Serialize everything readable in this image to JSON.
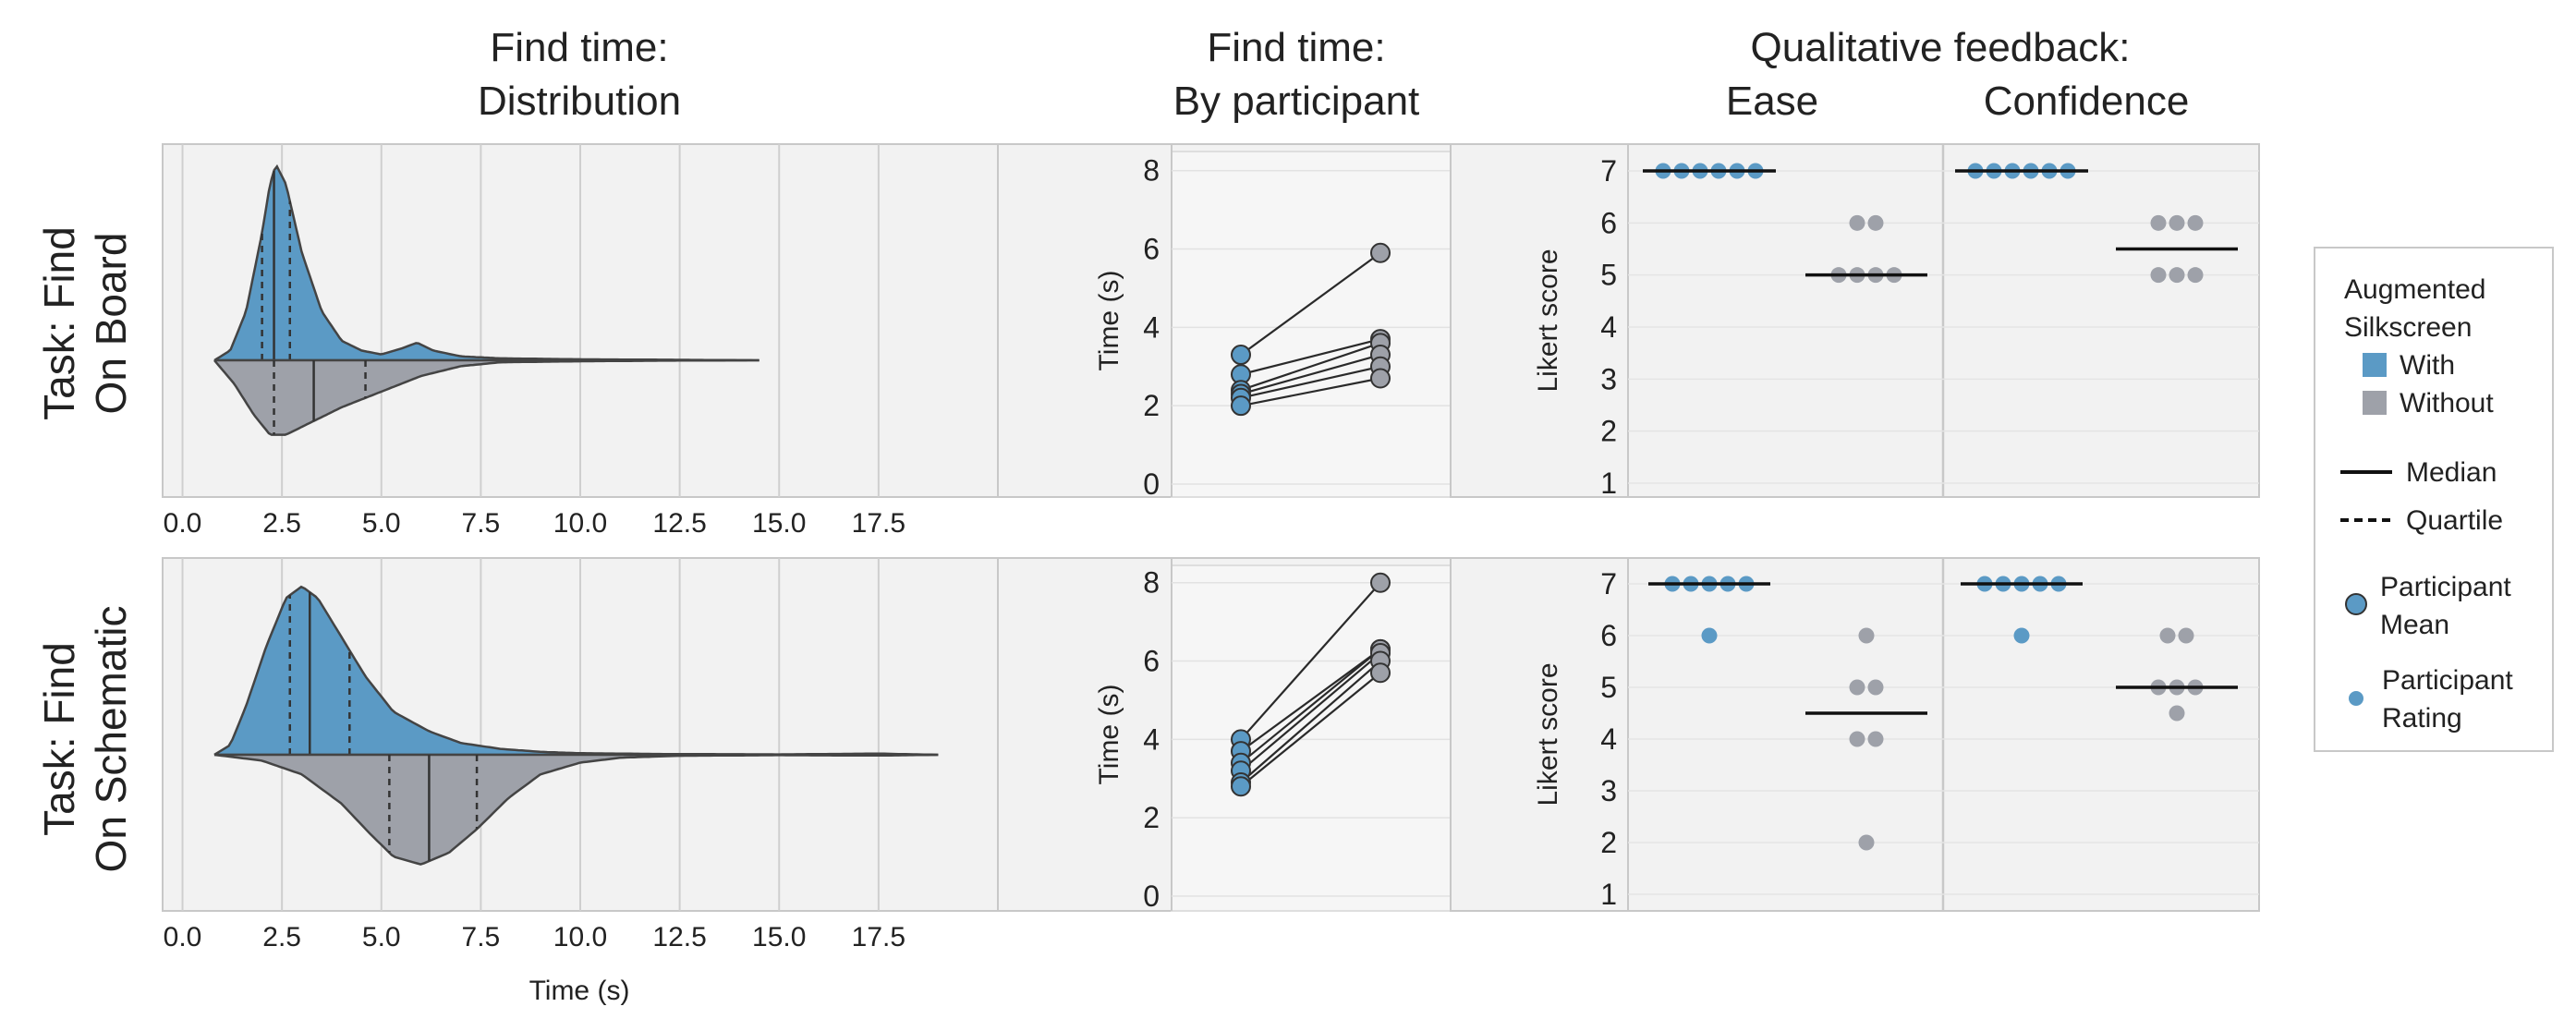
{
  "headers": {
    "dist_line1": "Find time:",
    "dist_line2": "Distribution",
    "part_line1": "Find time:",
    "part_line2": "By participant",
    "qual_line1": "Qualitative feedback:",
    "ease": "Ease",
    "confidence": "Confidence"
  },
  "rows": [
    {
      "line1": "Task: Find",
      "line2": "On Board"
    },
    {
      "line1": "Task: Find",
      "line2": "On Schematic"
    }
  ],
  "axis_labels": {
    "dist_x": "Time (s)",
    "part_y": "Time (s)",
    "likert_y": "Likert score"
  },
  "legend": {
    "title_line1": "Augmented",
    "title_line2": "Silkscreen",
    "with": "With",
    "without": "Without",
    "median": "Median",
    "quartile": "Quartile",
    "mean_line1": "Participant",
    "mean_line2": "Mean",
    "rating_line1": "Participant",
    "rating_line2": "Rating"
  },
  "colors": {
    "with": "#5b9ac5",
    "without": "#9ea1a9",
    "panel_bg": "#f2f2f2",
    "panel_border": "#c8c8c8",
    "grid": "#cfcfcf",
    "line": "#333333"
  },
  "chart_data": [
    {
      "type": "violin",
      "panel": "Distribution (On Board)",
      "x_ticks": [
        "0.0",
        "2.5",
        "5.0",
        "7.5",
        "10.0",
        "12.5",
        "15.0",
        "17.5"
      ],
      "xlim": [
        -0.5,
        20.5
      ],
      "xlabel": "",
      "series": [
        {
          "name": "With",
          "side": "top",
          "median": 2.3,
          "quartiles": [
            2.0,
            2.7
          ],
          "density": [
            [
              0.8,
              0
            ],
            [
              1.2,
              0.05
            ],
            [
              1.6,
              0.25
            ],
            [
              2.0,
              0.65
            ],
            [
              2.2,
              0.9
            ],
            [
              2.35,
              1.0
            ],
            [
              2.6,
              0.9
            ],
            [
              3.0,
              0.55
            ],
            [
              3.5,
              0.25
            ],
            [
              4.0,
              0.1
            ],
            [
              4.5,
              0.05
            ],
            [
              5.0,
              0.03
            ],
            [
              5.5,
              0.06
            ],
            [
              5.9,
              0.09
            ],
            [
              6.3,
              0.05
            ],
            [
              7.0,
              0.02
            ],
            [
              8.0,
              0.01
            ],
            [
              10.0,
              0.005
            ],
            [
              12.0,
              0.003
            ],
            [
              14.5,
              0
            ]
          ]
        },
        {
          "name": "Without",
          "side": "bottom",
          "median": 3.3,
          "quartiles": [
            2.3,
            4.6
          ],
          "density": [
            [
              0.8,
              0
            ],
            [
              1.3,
              0.12
            ],
            [
              1.8,
              0.28
            ],
            [
              2.2,
              0.38
            ],
            [
              2.6,
              0.38
            ],
            [
              3.2,
              0.32
            ],
            [
              4.0,
              0.24
            ],
            [
              5.0,
              0.16
            ],
            [
              6.0,
              0.08
            ],
            [
              7.0,
              0.03
            ],
            [
              8.0,
              0.01
            ],
            [
              10.0,
              0.005
            ],
            [
              12.0,
              0.002
            ],
            [
              14.5,
              0
            ]
          ]
        }
      ]
    },
    {
      "type": "violin",
      "panel": "Distribution (On Schematic)",
      "x_ticks": [
        "0.0",
        "2.5",
        "5.0",
        "7.5",
        "10.0",
        "12.5",
        "15.0",
        "17.5"
      ],
      "xlim": [
        -0.5,
        20.5
      ],
      "xlabel": "Time (s)",
      "series": [
        {
          "name": "With",
          "side": "top",
          "median": 3.2,
          "quartiles": [
            2.7,
            4.2
          ],
          "density": [
            [
              0.8,
              0
            ],
            [
              1.2,
              0.05
            ],
            [
              1.6,
              0.25
            ],
            [
              2.1,
              0.55
            ],
            [
              2.6,
              0.8
            ],
            [
              3.0,
              0.86
            ],
            [
              3.4,
              0.8
            ],
            [
              4.0,
              0.6
            ],
            [
              4.6,
              0.4
            ],
            [
              5.3,
              0.22
            ],
            [
              6.2,
              0.12
            ],
            [
              7.0,
              0.06
            ],
            [
              8.0,
              0.03
            ],
            [
              9.0,
              0.015
            ],
            [
              10.0,
              0.008
            ],
            [
              12.0,
              0.004
            ],
            [
              15.0,
              0.002
            ],
            [
              17.5,
              0.006
            ],
            [
              19.0,
              0
            ]
          ]
        },
        {
          "name": "Without",
          "side": "bottom",
          "median": 6.2,
          "quartiles": [
            5.2,
            7.4
          ],
          "density": [
            [
              0.8,
              0
            ],
            [
              2.0,
              0.03
            ],
            [
              3.0,
              0.1
            ],
            [
              4.0,
              0.25
            ],
            [
              4.7,
              0.4
            ],
            [
              5.3,
              0.52
            ],
            [
              6.0,
              0.56
            ],
            [
              6.7,
              0.5
            ],
            [
              7.4,
              0.38
            ],
            [
              8.2,
              0.22
            ],
            [
              9.0,
              0.1
            ],
            [
              10.0,
              0.04
            ],
            [
              11.0,
              0.015
            ],
            [
              12.5,
              0.005
            ],
            [
              15.0,
              0.002
            ],
            [
              17.5,
              0.004
            ],
            [
              19.0,
              0
            ]
          ]
        }
      ]
    },
    {
      "type": "scatter",
      "panel": "By participant (On Board)",
      "ylabel": "Time (s)",
      "y_ticks": [
        "0",
        "2",
        "4",
        "6",
        "8"
      ],
      "ylim": [
        0,
        8.3
      ],
      "pairs": [
        [
          3.3,
          5.9
        ],
        [
          2.8,
          3.7
        ],
        [
          2.4,
          3.6
        ],
        [
          2.3,
          3.3
        ],
        [
          2.2,
          3.0
        ],
        [
          2.0,
          2.7
        ]
      ]
    },
    {
      "type": "scatter",
      "panel": "By participant (On Schematic)",
      "ylabel": "Time (s)",
      "y_ticks": [
        "0",
        "2",
        "4",
        "6",
        "8"
      ],
      "ylim": [
        0,
        8.3
      ],
      "pairs": [
        [
          4.0,
          8.0
        ],
        [
          3.7,
          6.3
        ],
        [
          3.4,
          6.3
        ],
        [
          3.2,
          6.2
        ],
        [
          2.9,
          6.0
        ],
        [
          2.8,
          5.7
        ]
      ]
    },
    {
      "type": "scatter",
      "panel": "Likert (On Board)",
      "ylabel": "Likert score",
      "y_ticks": [
        "1",
        "2",
        "3",
        "4",
        "5",
        "6",
        "7"
      ],
      "ylim": [
        0.7,
        7.5
      ],
      "groups": [
        {
          "facet": "Ease",
          "series": "With",
          "median": 7,
          "ratings": [
            7,
            7,
            7,
            7,
            7,
            7
          ]
        },
        {
          "facet": "Ease",
          "series": "Without",
          "median": 5,
          "ratings": [
            6,
            6,
            5,
            5,
            5,
            5
          ]
        },
        {
          "facet": "Confidence",
          "series": "With",
          "median": 7,
          "ratings": [
            7,
            7,
            7,
            7,
            7,
            7
          ]
        },
        {
          "facet": "Confidence",
          "series": "Without",
          "median": 5.5,
          "ratings": [
            6,
            6,
            6,
            5,
            5,
            5
          ]
        }
      ]
    },
    {
      "type": "scatter",
      "panel": "Likert (On Schematic)",
      "ylabel": "Likert score",
      "y_ticks": [
        "1",
        "2",
        "3",
        "4",
        "5",
        "6",
        "7"
      ],
      "ylim": [
        0.7,
        7.5
      ],
      "groups": [
        {
          "facet": "Ease",
          "series": "With",
          "median": 7,
          "ratings": [
            7,
            7,
            7,
            7,
            7,
            6
          ]
        },
        {
          "facet": "Ease",
          "series": "Without",
          "median": 4.5,
          "ratings": [
            6,
            5,
            5,
            4,
            4,
            2
          ]
        },
        {
          "facet": "Confidence",
          "series": "With",
          "median": 7,
          "ratings": [
            7,
            7,
            7,
            7,
            7,
            6
          ]
        },
        {
          "facet": "Confidence",
          "series": "Without",
          "median": 5,
          "ratings": [
            6,
            6,
            5,
            5,
            5,
            4.5
          ]
        }
      ]
    }
  ]
}
